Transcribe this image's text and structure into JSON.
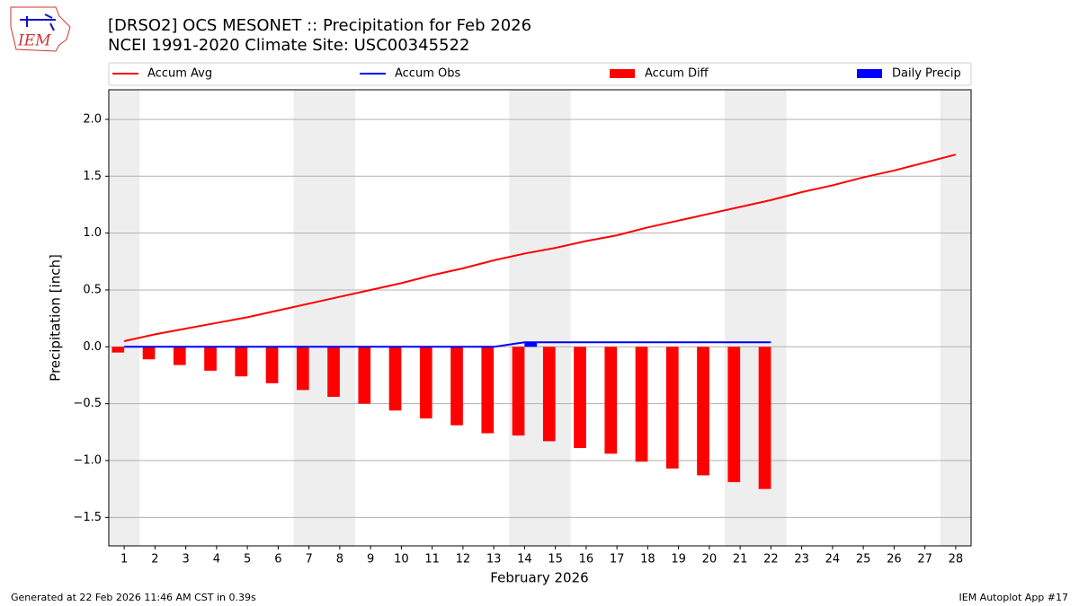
{
  "chart_data": {
    "type": "bar-line",
    "title": "[DRSO2] OCS MESONET :: Precipitation for Feb 2026",
    "subtitle": "NCEI 1991-2020 Climate Site: USC00345522",
    "y_label": "Precipitation [inch]",
    "x_label": "February 2026",
    "footer_left": "Generated at 22 Feb 2026 11:46 AM CST in 0.39s",
    "footer_right": "IEM Autoplot App #17",
    "logo_text": "IEM",
    "x": [
      1,
      2,
      3,
      4,
      5,
      6,
      7,
      8,
      9,
      10,
      11,
      12,
      13,
      14,
      15,
      16,
      17,
      18,
      19,
      20,
      21,
      22,
      23,
      24,
      25,
      26,
      27,
      28
    ],
    "xlim": [
      0.5,
      28.5
    ],
    "xticks": [
      1,
      2,
      3,
      4,
      5,
      6,
      7,
      8,
      9,
      10,
      11,
      12,
      13,
      14,
      15,
      16,
      17,
      18,
      19,
      20,
      21,
      22,
      23,
      24,
      25,
      26,
      27,
      28
    ],
    "ylim": [
      -1.75,
      2.26
    ],
    "yticks": [
      {
        "value": -1.5,
        "label": "−1.5"
      },
      {
        "value": -1.0,
        "label": "−1.0"
      },
      {
        "value": -0.5,
        "label": "−0.5"
      },
      {
        "value": 0,
        "label": "0.0"
      },
      0.5,
      {
        "value": 1,
        "label": "1.0"
      },
      1.5,
      {
        "value": 2,
        "label": "2.0"
      }
    ],
    "grid": true,
    "shaded_ranges": [
      [
        0.5,
        1.5
      ],
      [
        6.5,
        8.5
      ],
      [
        13.5,
        15.5
      ],
      [
        20.5,
        22.5
      ],
      [
        27.5,
        28.5
      ]
    ],
    "shade_color": "#eeeeee",
    "series": [
      {
        "name": "Accum Avg",
        "kind": "line",
        "color": "#ff0000",
        "values": [
          0.05,
          0.11,
          0.16,
          0.21,
          0.26,
          0.32,
          0.38,
          0.44,
          0.5,
          0.56,
          0.63,
          0.69,
          0.76,
          0.82,
          0.87,
          0.93,
          0.98,
          1.05,
          1.11,
          1.17,
          1.23,
          1.29,
          1.36,
          1.42,
          1.49,
          1.55,
          1.62,
          1.69
        ]
      },
      {
        "name": "Accum Obs",
        "kind": "line",
        "color": "#0000ff",
        "values": [
          0,
          0,
          0,
          0,
          0,
          0,
          0,
          0,
          0,
          0,
          0,
          0,
          0,
          0.04,
          0.04,
          0.04,
          0.04,
          0.04,
          0.04,
          0.04,
          0.04,
          0.04,
          null,
          null,
          null,
          null,
          null,
          null
        ]
      },
      {
        "name": "Accum Diff",
        "kind": "bar",
        "offset": -0.4,
        "color": "#ff0000",
        "values": [
          -0.05,
          -0.11,
          -0.16,
          -0.21,
          -0.26,
          -0.32,
          -0.38,
          -0.44,
          -0.5,
          -0.56,
          -0.63,
          -0.69,
          -0.76,
          -0.78,
          -0.83,
          -0.89,
          -0.94,
          -1.01,
          -1.07,
          -1.13,
          -1.19,
          -1.25,
          null,
          null,
          null,
          null,
          null,
          null
        ]
      },
      {
        "name": "Daily Precip",
        "kind": "bar",
        "offset": 0,
        "color": "#0000ff",
        "values": [
          0,
          0,
          0,
          0,
          0,
          0,
          0,
          0,
          0,
          0,
          0,
          0,
          0,
          0.04,
          0,
          0,
          0,
          0,
          0,
          0,
          0,
          0,
          null,
          null,
          null,
          null,
          null,
          null
        ]
      }
    ]
  }
}
